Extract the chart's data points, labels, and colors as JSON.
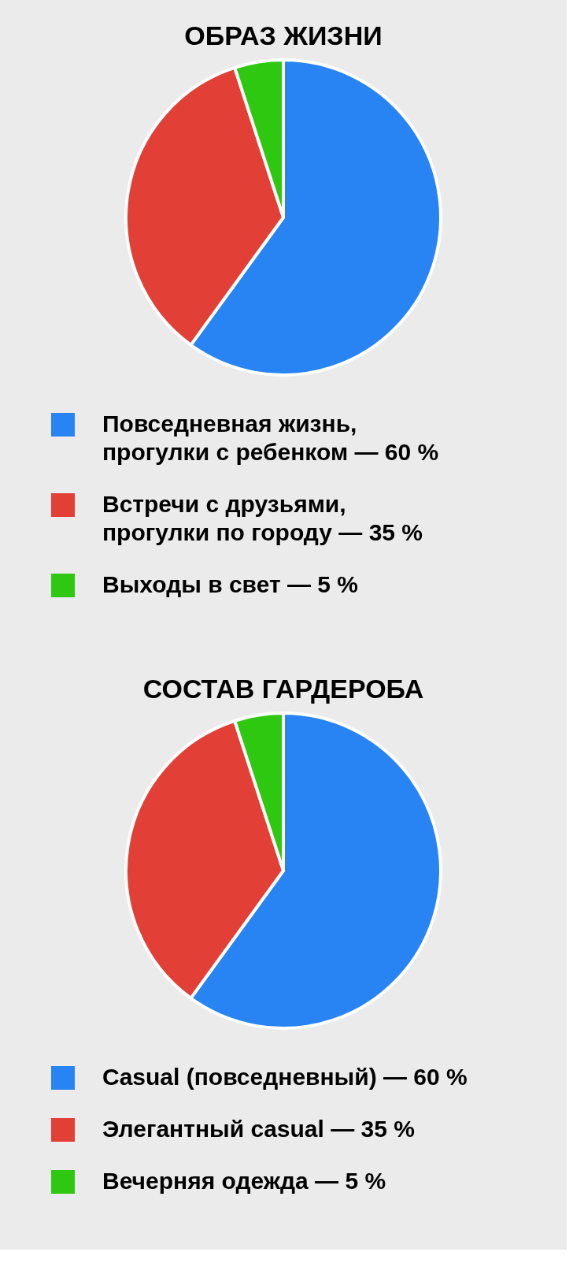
{
  "chart_data": [
    {
      "type": "pie",
      "title": "ОБРАЗ ЖИЗНИ",
      "categories": [
        "Повседневная жизнь, прогулки с ребенком — 60 %",
        "Встречи с друзьями, прогулки по городу — 35 %",
        "Выходы в свет — 5 %"
      ],
      "values": [
        60,
        35,
        5
      ],
      "colors": [
        "#2884f2",
        "#e23f37",
        "#2ec810"
      ],
      "legend": "bottom"
    },
    {
      "type": "pie",
      "title": "СОСТАВ ГАРДЕРОБА",
      "categories": [
        "Casual (повседневный) — 60 %",
        "Элегантный casual — 35 %",
        "Вечерняя одежда — 5 %"
      ],
      "values": [
        60,
        35,
        5
      ],
      "colors": [
        "#2884f2",
        "#e23f37",
        "#2ec810"
      ],
      "legend": "bottom"
    }
  ]
}
